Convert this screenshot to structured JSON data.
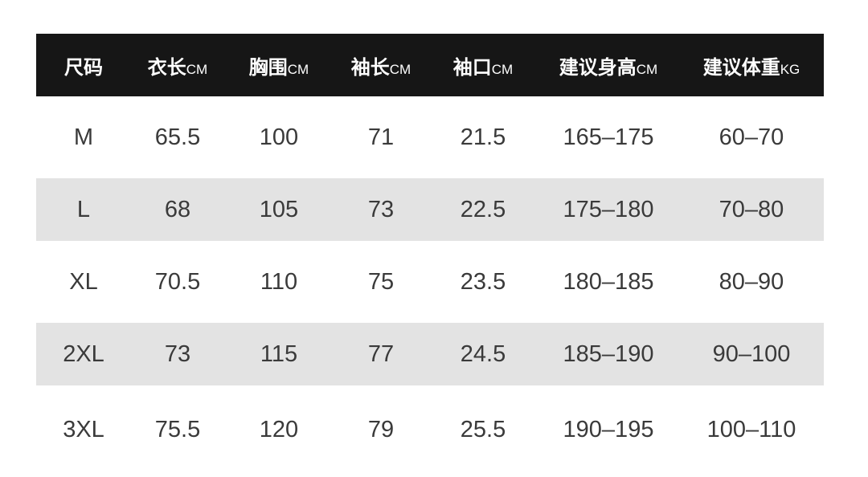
{
  "headers": [
    {
      "label": "尺码",
      "unit": ""
    },
    {
      "label": "衣长",
      "unit": "CM"
    },
    {
      "label": "胸围",
      "unit": "CM"
    },
    {
      "label": "袖长",
      "unit": "CM"
    },
    {
      "label": "袖口",
      "unit": "CM"
    },
    {
      "label": "建议身高",
      "unit": "CM"
    },
    {
      "label": "建议体重",
      "unit": "KG"
    }
  ],
  "rows": [
    [
      "M",
      "65.5",
      "100",
      "71",
      "21.5",
      "165–175",
      "60–70"
    ],
    [
      "L",
      "68",
      "105",
      "73",
      "22.5",
      "175–180",
      "70–80"
    ],
    [
      "XL",
      "70.5",
      "110",
      "75",
      "23.5",
      "180–185",
      "80–90"
    ],
    [
      "2XL",
      "73",
      "115",
      "77",
      "24.5",
      "185–190",
      "90–100"
    ],
    [
      "3XL",
      "75.5",
      "120",
      "79",
      "25.5",
      "190–195",
      "100–110"
    ]
  ],
  "colors": {
    "header_bg": "#161616",
    "stripe_bg": "#e3e3e3",
    "text": "#3a3a3a"
  }
}
